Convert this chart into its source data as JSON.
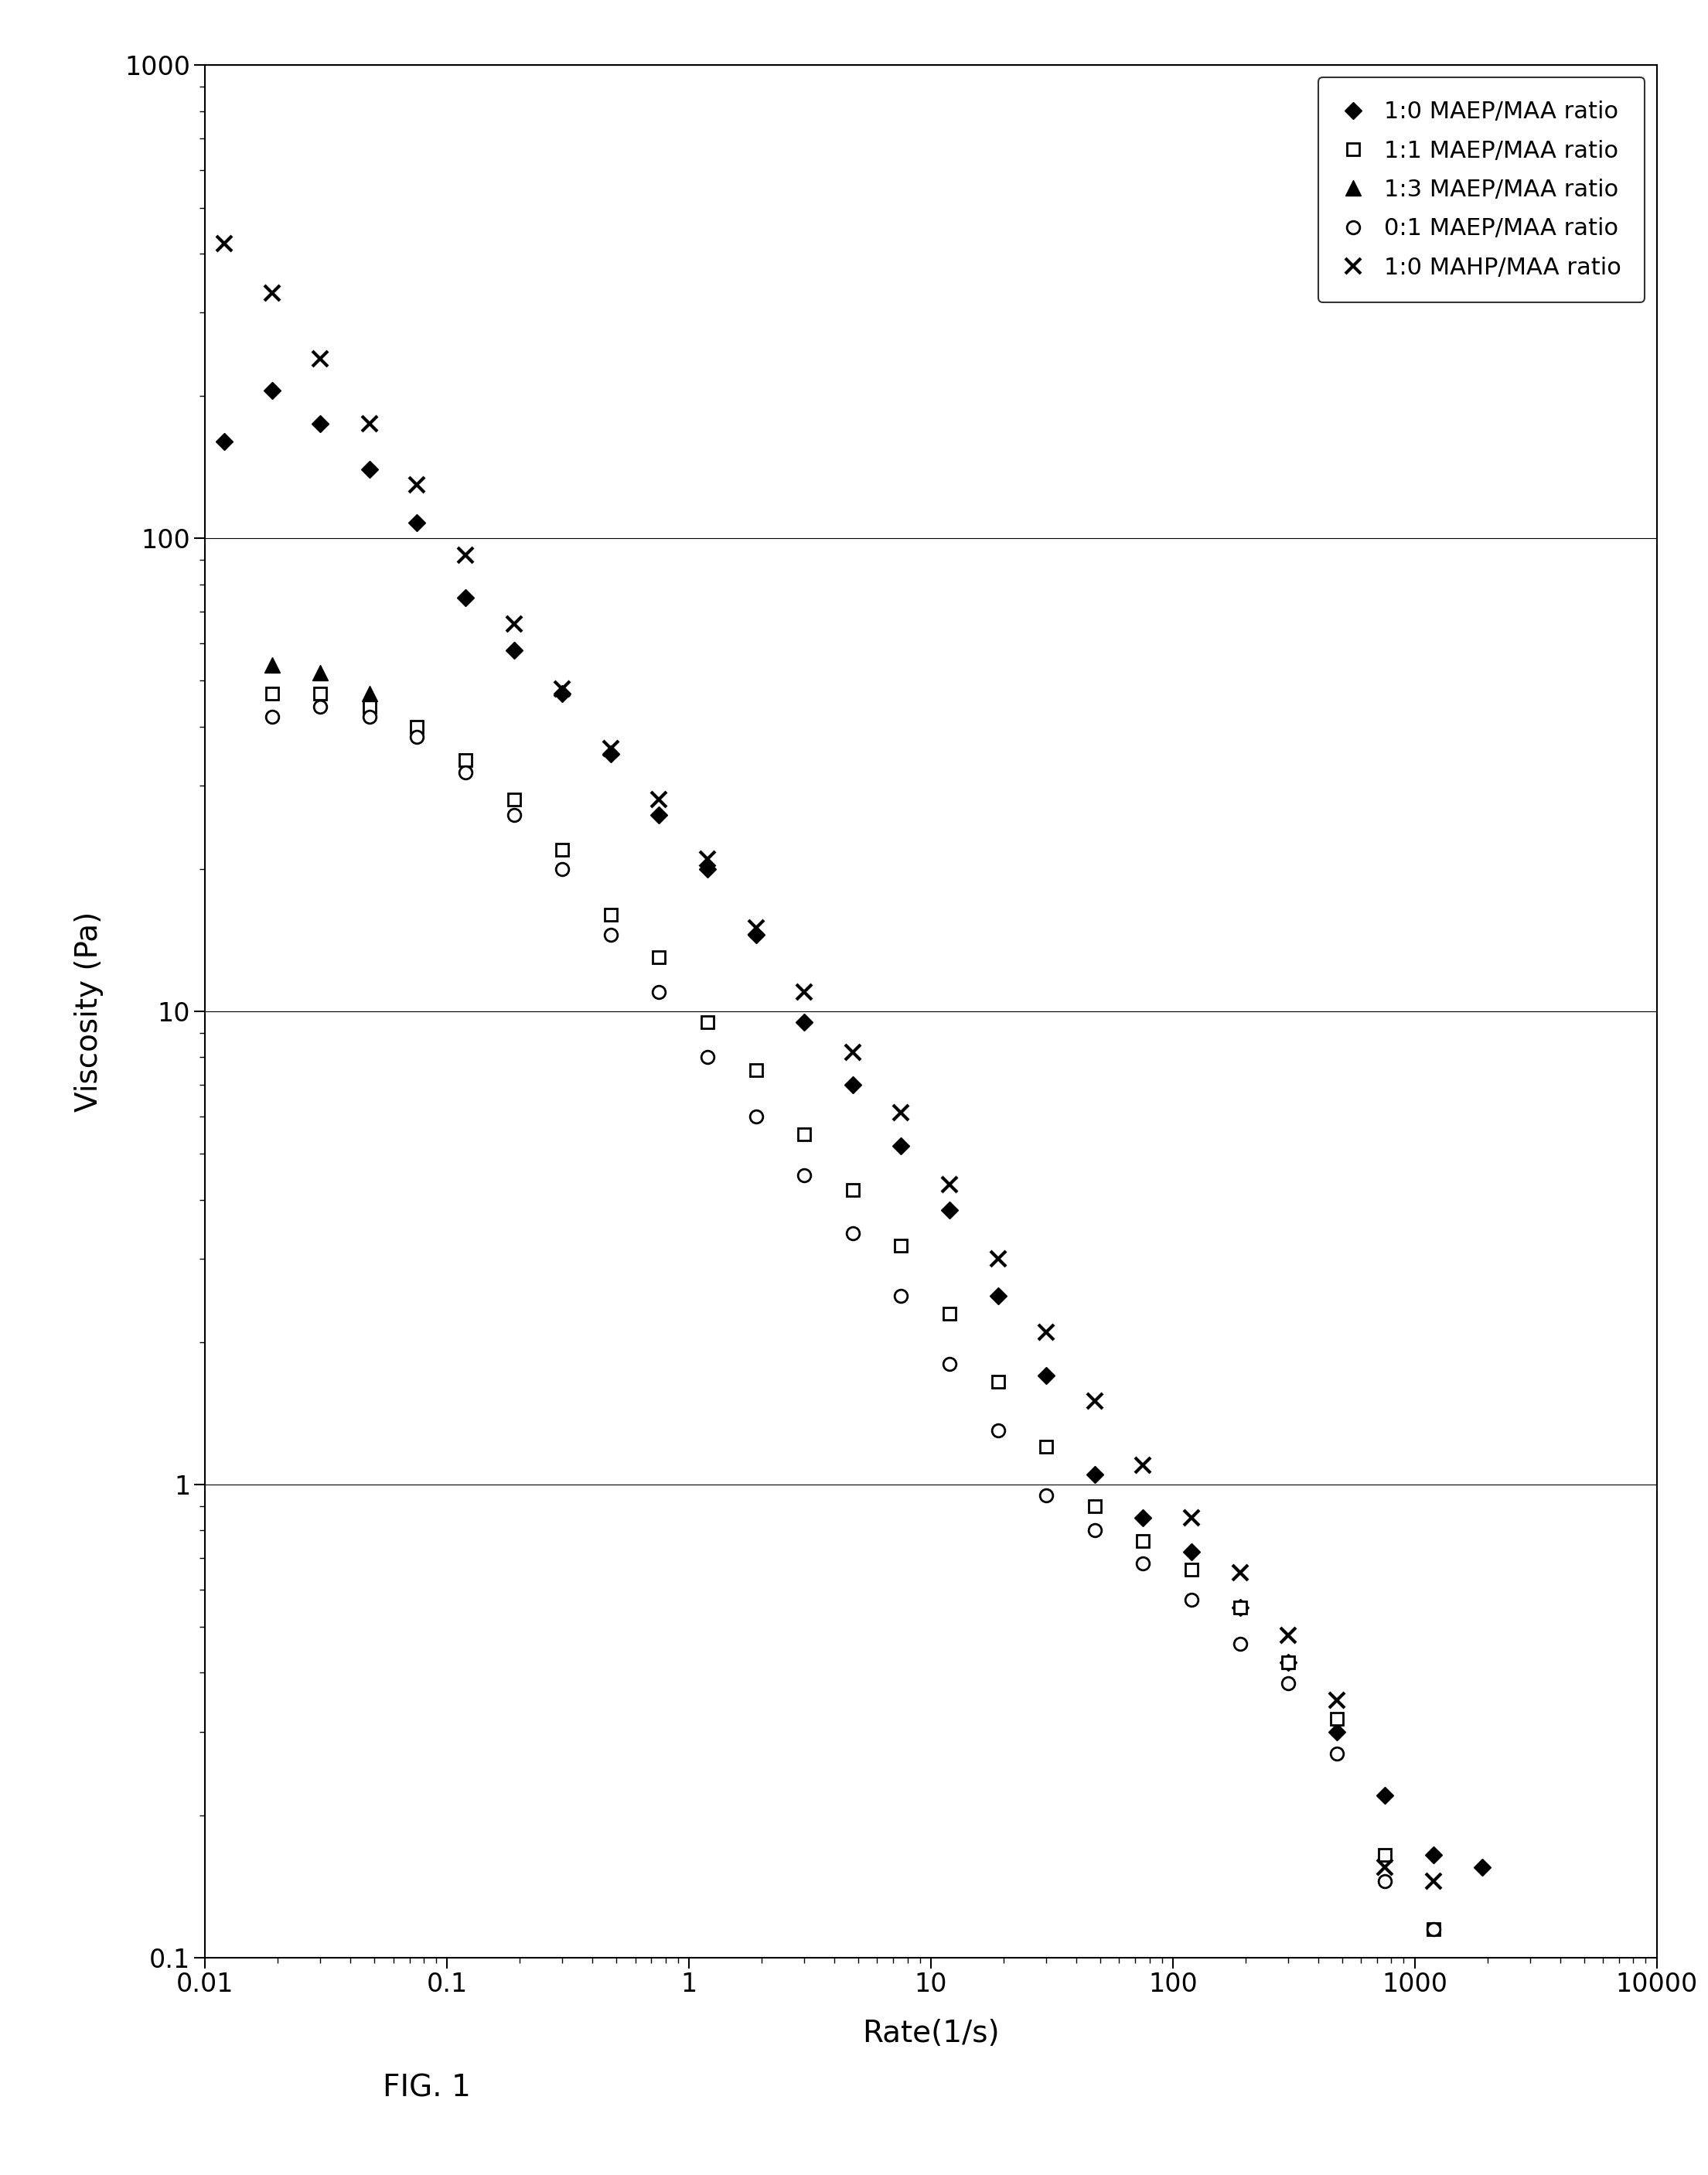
{
  "title": "",
  "xlabel": "Rate(1/s)",
  "ylabel": "Viscosity (Pa)",
  "fig_label": "FIG. 1",
  "xlim": [
    0.01,
    10000
  ],
  "ylim": [
    0.1,
    1000
  ],
  "legend_labels": [
    "1:0 MAEP/MAA ratio",
    "1:1 MAEP/MAA ratio",
    "1:3 MAEP/MAA ratio",
    "0:1 MAEP/MAA ratio",
    "1:0 MAHP/MAA ratio"
  ],
  "series": {
    "diamond_filled": {
      "x": [
        0.012,
        0.019,
        0.03,
        0.048,
        0.075,
        0.119,
        0.189,
        0.3,
        0.475,
        0.753,
        1.194,
        1.893,
        3.0,
        4.75,
        7.53,
        11.94,
        18.93,
        30.0,
        47.5,
        75.3,
        119.4,
        189.3,
        300.0,
        475.0,
        753.0,
        1194.0,
        1893.0
      ],
      "y": [
        160,
        205,
        175,
        140,
        108,
        75,
        58,
        47,
        35,
        26,
        20,
        14.5,
        9.5,
        7.0,
        5.2,
        3.8,
        2.5,
        1.7,
        1.05,
        0.85,
        0.72,
        0.55,
        0.42,
        0.3,
        0.22,
        0.165,
        0.155
      ]
    },
    "square_open": {
      "x": [
        0.019,
        0.03,
        0.048,
        0.075,
        0.119,
        0.189,
        0.3,
        0.475,
        0.753,
        1.194,
        1.893,
        3.0,
        4.75,
        7.53,
        11.94,
        18.93,
        30.0,
        47.5,
        75.3,
        119.4,
        189.3,
        300.0,
        475.0,
        753.0,
        1194.0
      ],
      "y": [
        47,
        47,
        44,
        40,
        34,
        28,
        22,
        16,
        13.0,
        9.5,
        7.5,
        5.5,
        4.2,
        3.2,
        2.3,
        1.65,
        1.2,
        0.9,
        0.76,
        0.66,
        0.55,
        0.42,
        0.32,
        0.165,
        0.115
      ]
    },
    "triangle_filled": {
      "x": [
        0.019,
        0.03,
        0.048
      ],
      "y": [
        54,
        52,
        47
      ]
    },
    "circle_open": {
      "x": [
        0.019,
        0.03,
        0.048,
        0.075,
        0.119,
        0.189,
        0.3,
        0.475,
        0.753,
        1.194,
        1.893,
        3.0,
        4.75,
        7.53,
        11.94,
        18.93,
        30.0,
        47.5,
        75.3,
        119.4,
        189.3,
        300.0,
        475.0,
        753.0,
        1194.0
      ],
      "y": [
        42,
        44,
        42,
        38,
        32,
        26,
        20,
        14.5,
        11.0,
        8.0,
        6.0,
        4.5,
        3.4,
        2.5,
        1.8,
        1.3,
        0.95,
        0.8,
        0.68,
        0.57,
        0.46,
        0.38,
        0.27,
        0.145,
        0.115
      ]
    },
    "x_marker": {
      "x": [
        0.012,
        0.019,
        0.03,
        0.048,
        0.075,
        0.119,
        0.189,
        0.3,
        0.475,
        0.753,
        1.194,
        1.893,
        3.0,
        4.75,
        7.53,
        11.94,
        18.93,
        30.0,
        47.5,
        75.3,
        119.4,
        189.3,
        300.0,
        475.0,
        753.0,
        1194.0
      ],
      "y": [
        420,
        330,
        240,
        175,
        130,
        92,
        66,
        48,
        36,
        28,
        21,
        15,
        11.0,
        8.2,
        6.1,
        4.3,
        3.0,
        2.1,
        1.5,
        1.1,
        0.85,
        0.65,
        0.48,
        0.35,
        0.155,
        0.145
      ]
    }
  }
}
